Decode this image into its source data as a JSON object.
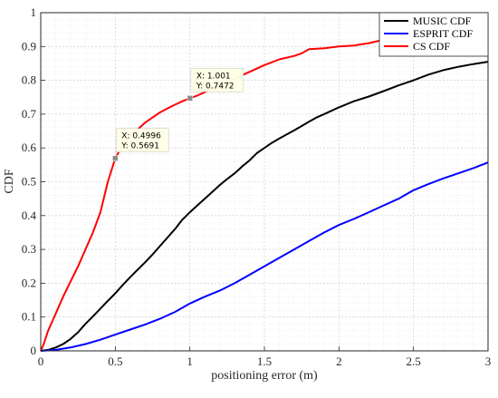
{
  "chart_data": {
    "type": "line",
    "xlabel": "positioning error (m)",
    "ylabel": "CDF",
    "xlim": [
      0,
      3
    ],
    "ylim": [
      0,
      1
    ],
    "x_ticks": [
      "0",
      "0.5",
      "1",
      "1.5",
      "2",
      "2.5",
      "3"
    ],
    "y_ticks": [
      "0",
      "0.1",
      "0.2",
      "0.3",
      "0.4",
      "0.5",
      "0.6",
      "0.7",
      "0.8",
      "0.9",
      "1"
    ],
    "grid": "on",
    "minor_grid": "on",
    "legend_position": "top-right",
    "series": [
      {
        "name": "MUSIC CDF",
        "color": "#000000",
        "points": [
          [
            0,
            0
          ],
          [
            0.05,
            0.003
          ],
          [
            0.1,
            0.01
          ],
          [
            0.15,
            0.02
          ],
          [
            0.2,
            0.035
          ],
          [
            0.25,
            0.055
          ],
          [
            0.3,
            0.08
          ],
          [
            0.35,
            0.102
          ],
          [
            0.4,
            0.125
          ],
          [
            0.45,
            0.148
          ],
          [
            0.5,
            0.17
          ],
          [
            0.55,
            0.195
          ],
          [
            0.6,
            0.218
          ],
          [
            0.65,
            0.24
          ],
          [
            0.7,
            0.262
          ],
          [
            0.75,
            0.285
          ],
          [
            0.8,
            0.31
          ],
          [
            0.85,
            0.335
          ],
          [
            0.9,
            0.36
          ],
          [
            0.95,
            0.388
          ],
          [
            1.0,
            0.41
          ],
          [
            1.05,
            0.43
          ],
          [
            1.1,
            0.45
          ],
          [
            1.15,
            0.47
          ],
          [
            1.2,
            0.49
          ],
          [
            1.25,
            0.508
          ],
          [
            1.3,
            0.525
          ],
          [
            1.35,
            0.545
          ],
          [
            1.4,
            0.563
          ],
          [
            1.45,
            0.585
          ],
          [
            1.5,
            0.6
          ],
          [
            1.55,
            0.615
          ],
          [
            1.6,
            0.628
          ],
          [
            1.65,
            0.64
          ],
          [
            1.7,
            0.652
          ],
          [
            1.75,
            0.665
          ],
          [
            1.8,
            0.678
          ],
          [
            1.85,
            0.69
          ],
          [
            1.9,
            0.7
          ],
          [
            1.95,
            0.71
          ],
          [
            2.0,
            0.72
          ],
          [
            2.1,
            0.738
          ],
          [
            2.2,
            0.752
          ],
          [
            2.3,
            0.768
          ],
          [
            2.4,
            0.785
          ],
          [
            2.5,
            0.8
          ],
          [
            2.6,
            0.817
          ],
          [
            2.7,
            0.83
          ],
          [
            2.8,
            0.84
          ],
          [
            2.9,
            0.848
          ],
          [
            3.0,
            0.855
          ]
        ]
      },
      {
        "name": "ESPRIT CDF",
        "color": "#0000ff",
        "points": [
          [
            0,
            0
          ],
          [
            0.1,
            0.003
          ],
          [
            0.2,
            0.01
          ],
          [
            0.3,
            0.02
          ],
          [
            0.4,
            0.033
          ],
          [
            0.5,
            0.048
          ],
          [
            0.6,
            0.063
          ],
          [
            0.7,
            0.078
          ],
          [
            0.8,
            0.095
          ],
          [
            0.9,
            0.115
          ],
          [
            1.0,
            0.14
          ],
          [
            1.1,
            0.16
          ],
          [
            1.2,
            0.178
          ],
          [
            1.3,
            0.2
          ],
          [
            1.4,
            0.225
          ],
          [
            1.5,
            0.25
          ],
          [
            1.6,
            0.275
          ],
          [
            1.7,
            0.3
          ],
          [
            1.8,
            0.325
          ],
          [
            1.9,
            0.35
          ],
          [
            2.0,
            0.372
          ],
          [
            2.1,
            0.39
          ],
          [
            2.2,
            0.41
          ],
          [
            2.3,
            0.43
          ],
          [
            2.4,
            0.45
          ],
          [
            2.5,
            0.475
          ],
          [
            2.6,
            0.493
          ],
          [
            2.7,
            0.51
          ],
          [
            2.8,
            0.525
          ],
          [
            2.9,
            0.54
          ],
          [
            3.0,
            0.557
          ]
        ]
      },
      {
        "name": "CS CDF",
        "color": "#ff0000",
        "points": [
          [
            0,
            0
          ],
          [
            0.02,
            0.02
          ],
          [
            0.05,
            0.06
          ],
          [
            0.1,
            0.11
          ],
          [
            0.15,
            0.16
          ],
          [
            0.2,
            0.205
          ],
          [
            0.25,
            0.25
          ],
          [
            0.3,
            0.3
          ],
          [
            0.35,
            0.35
          ],
          [
            0.4,
            0.41
          ],
          [
            0.45,
            0.5
          ],
          [
            0.4996,
            0.5691
          ],
          [
            0.55,
            0.61
          ],
          [
            0.6,
            0.635
          ],
          [
            0.65,
            0.655
          ],
          [
            0.7,
            0.675
          ],
          [
            0.75,
            0.69
          ],
          [
            0.8,
            0.705
          ],
          [
            0.85,
            0.717
          ],
          [
            0.9,
            0.728
          ],
          [
            0.95,
            0.738
          ],
          [
            1.001,
            0.7472
          ],
          [
            1.05,
            0.755
          ],
          [
            1.1,
            0.765
          ],
          [
            1.2,
            0.785
          ],
          [
            1.3,
            0.805
          ],
          [
            1.4,
            0.825
          ],
          [
            1.5,
            0.845
          ],
          [
            1.6,
            0.862
          ],
          [
            1.7,
            0.872
          ],
          [
            1.75,
            0.88
          ],
          [
            1.8,
            0.892
          ],
          [
            1.9,
            0.895
          ],
          [
            2.0,
            0.9
          ],
          [
            2.1,
            0.903
          ],
          [
            2.2,
            0.91
          ],
          [
            2.3,
            0.92
          ],
          [
            2.4,
            0.925
          ],
          [
            2.45,
            0.93
          ]
        ]
      }
    ],
    "datatips": [
      {
        "x": 0.4996,
        "y": 0.5691,
        "x_text": "X: 0.4996",
        "y_text": "Y: 0.5691"
      },
      {
        "x": 1.001,
        "y": 0.7472,
        "x_text": "X: 1.001",
        "y_text": "Y: 0.7472"
      }
    ]
  }
}
